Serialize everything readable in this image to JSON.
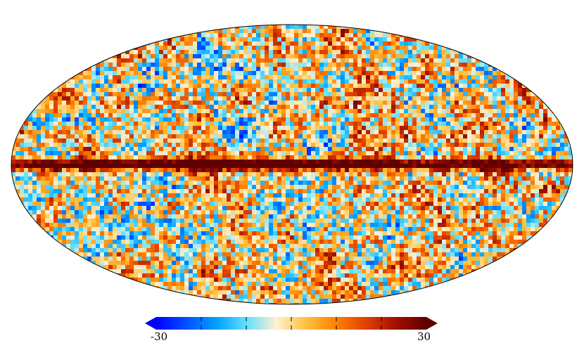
{
  "colorbar": {
    "min_label": "-30",
    "max_label": "30",
    "min_value": -30,
    "max_value": 30,
    "stops": [
      "#0000ff",
      "#0050ff",
      "#00a0ff",
      "#60e0ff",
      "#fff0d0",
      "#ffc040",
      "#ff8000",
      "#e04000",
      "#a01000",
      "#600000"
    ]
  },
  "map": {
    "projection": "mollweide",
    "background": "#ffffff",
    "outline_color": "#000000"
  }
}
